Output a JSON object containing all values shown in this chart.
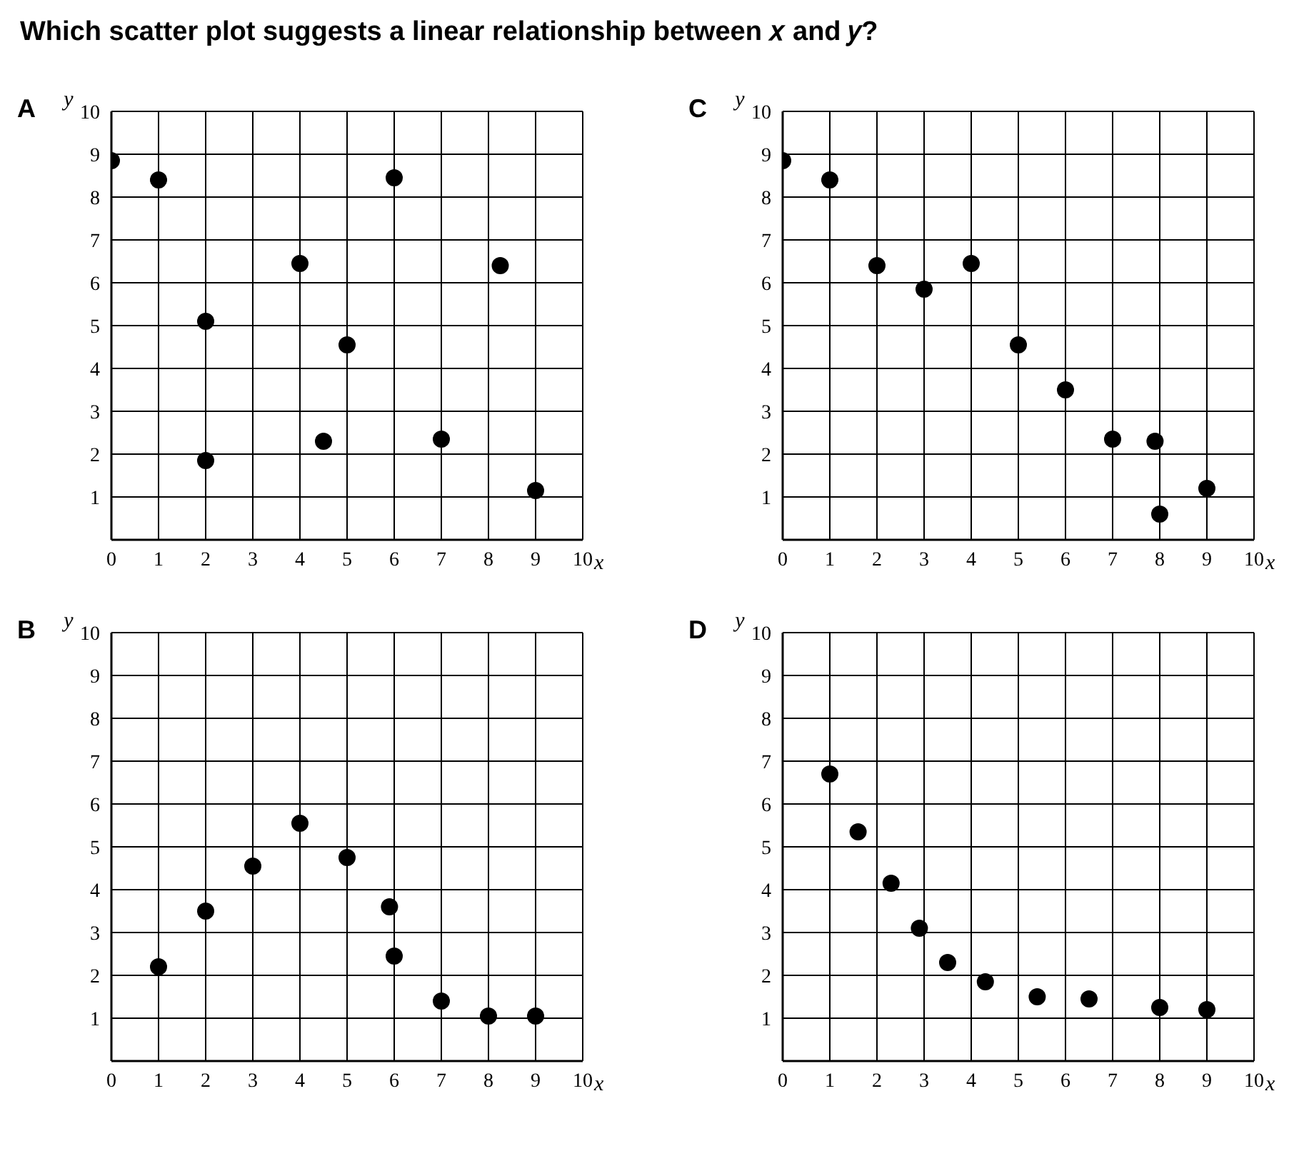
{
  "chart_data": [
    {
      "type": "scatter",
      "title": "A",
      "annotations": [
        "Which scatter plot suggests a linear relationship between 𝑥 and 𝑦?"
      ],
      "xlabel": "x",
      "ylabel": "y",
      "xlim": [
        0,
        10
      ],
      "ylim": [
        0,
        10
      ],
      "xticks": [
        0,
        1,
        2,
        3,
        4,
        5,
        6,
        7,
        8,
        9,
        10
      ],
      "yticks": [
        1,
        2,
        3,
        4,
        5,
        6,
        7,
        8,
        9,
        10
      ],
      "grid": true,
      "marker": "circle",
      "legend": false,
      "series": [
        {
          "color": "#000000",
          "x": [
            0,
            1,
            2,
            2,
            4,
            4.5,
            5,
            6,
            7,
            8.25,
            9
          ],
          "values": [
            8.85,
            8.4,
            5.1,
            1.85,
            6.45,
            2.3,
            4.55,
            8.45,
            2.35,
            6.4,
            1.15
          ]
        }
      ]
    },
    {
      "type": "scatter",
      "title": "C",
      "xlabel": "x",
      "ylabel": "y",
      "xlim": [
        0,
        10
      ],
      "ylim": [
        0,
        10
      ],
      "xticks": [
        0,
        1,
        2,
        3,
        4,
        5,
        6,
        7,
        8,
        9,
        10
      ],
      "yticks": [
        1,
        2,
        3,
        4,
        5,
        6,
        7,
        8,
        9,
        10
      ],
      "grid": true,
      "marker": "circle",
      "legend": false,
      "series": [
        {
          "color": "#000000",
          "x": [
            0,
            1,
            2,
            3,
            4,
            5,
            6,
            7,
            7.9,
            8,
            9
          ],
          "values": [
            8.85,
            8.4,
            6.4,
            5.85,
            6.45,
            4.55,
            3.5,
            2.35,
            2.3,
            0.6,
            1.2
          ]
        }
      ]
    },
    {
      "type": "scatter",
      "title": "B",
      "xlabel": "x",
      "ylabel": "y",
      "xlim": [
        0,
        10
      ],
      "ylim": [
        0,
        10
      ],
      "xticks": [
        0,
        1,
        2,
        3,
        4,
        5,
        6,
        7,
        8,
        9,
        10
      ],
      "yticks": [
        1,
        2,
        3,
        4,
        5,
        6,
        7,
        8,
        9,
        10
      ],
      "grid": true,
      "marker": "circle",
      "legend": false,
      "series": [
        {
          "color": "#000000",
          "x": [
            1,
            2,
            3,
            4,
            5,
            5.9,
            6,
            7,
            8,
            9
          ],
          "values": [
            2.2,
            3.5,
            4.55,
            5.55,
            4.75,
            3.6,
            2.45,
            1.4,
            1.05,
            1.05
          ]
        }
      ]
    },
    {
      "type": "scatter",
      "title": "D",
      "xlabel": "x",
      "ylabel": "y",
      "xlim": [
        0,
        10
      ],
      "ylim": [
        0,
        10
      ],
      "xticks": [
        0,
        1,
        2,
        3,
        4,
        5,
        6,
        7,
        8,
        9,
        10
      ],
      "yticks": [
        1,
        2,
        3,
        4,
        5,
        6,
        7,
        8,
        9,
        10
      ],
      "grid": true,
      "marker": "circle",
      "legend": false,
      "series": [
        {
          "color": "#000000",
          "x": [
            1,
            1.6,
            2.3,
            2.9,
            3.5,
            4.3,
            5.4,
            6.5,
            8,
            9
          ],
          "values": [
            6.7,
            5.35,
            4.15,
            3.1,
            2.3,
            1.85,
            1.5,
            1.45,
            1.25,
            1.2
          ]
        }
      ]
    }
  ]
}
